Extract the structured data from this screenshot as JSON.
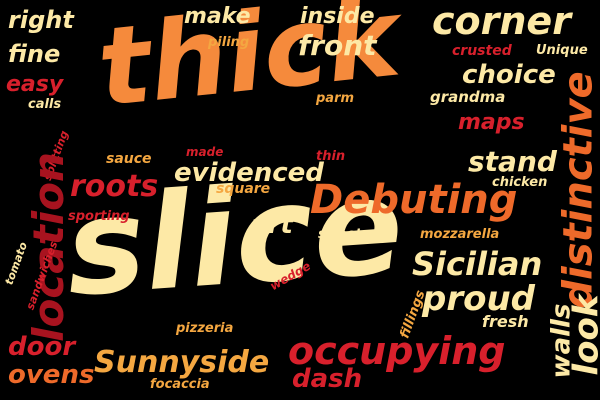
{
  "words": [
    {
      "text": "thick",
      "color": "cream"
    },
    {
      "text": "slice",
      "color": "cream"
    },
    {
      "text": "right",
      "color": "cream"
    },
    {
      "text": "make",
      "color": "cream"
    },
    {
      "text": "inside",
      "color": "cream"
    },
    {
      "text": "corner",
      "color": "cream"
    },
    {
      "text": "front",
      "color": "cream"
    },
    {
      "text": "fine",
      "color": "cream"
    },
    {
      "text": "piling",
      "color": "amber"
    },
    {
      "text": "crusted",
      "color": "red"
    },
    {
      "text": "Unique",
      "color": "cream"
    },
    {
      "text": "easy",
      "color": "red"
    },
    {
      "text": "choice",
      "color": "cream"
    },
    {
      "text": "calls",
      "color": "cream"
    },
    {
      "text": "parm",
      "color": "amber"
    },
    {
      "text": "grandma",
      "color": "cream"
    },
    {
      "text": "distinctive",
      "color": "oranger"
    },
    {
      "text": "maps",
      "color": "red"
    },
    {
      "text": "splitting",
      "color": "red"
    },
    {
      "text": "sauce",
      "color": "amber"
    },
    {
      "text": "made",
      "color": "red"
    },
    {
      "text": "thin",
      "color": "red"
    },
    {
      "text": "stand",
      "color": "cream"
    },
    {
      "text": "chicken",
      "color": "cream"
    },
    {
      "text": "evidenced",
      "color": "cream"
    },
    {
      "text": "location",
      "color": "dred"
    },
    {
      "text": "square",
      "color": "amber"
    },
    {
      "text": "roots",
      "color": "red"
    },
    {
      "text": "Debuting",
      "color": "oranger"
    },
    {
      "text": "sporting",
      "color": "red"
    },
    {
      "text": "art",
      "color": "cream"
    },
    {
      "text": "tomato",
      "color": "cream"
    },
    {
      "text": "sweet",
      "color": "cream"
    },
    {
      "text": "mozzarella",
      "color": "amber"
    },
    {
      "text": "sandwiches",
      "color": "red"
    },
    {
      "text": "Sicilian",
      "color": "cream"
    },
    {
      "text": "wedge",
      "color": "red"
    },
    {
      "text": "proud",
      "color": "cream"
    },
    {
      "text": "fillings",
      "color": "amber"
    },
    {
      "text": "walls",
      "color": "cream"
    },
    {
      "text": "fresh",
      "color": "cream"
    },
    {
      "text": "look",
      "color": "cream"
    },
    {
      "text": "pizzeria",
      "color": "amber"
    },
    {
      "text": "door",
      "color": "red"
    },
    {
      "text": "Sunnyside",
      "color": "amber"
    },
    {
      "text": "occupying",
      "color": "red"
    },
    {
      "text": "ovens",
      "color": "oranger"
    },
    {
      "text": "focaccia",
      "color": "amber"
    },
    {
      "text": "dash",
      "color": "red"
    }
  ],
  "colors": {
    "cream": "#fde9a6",
    "orange": "#f58a3c",
    "amber": "#f4a741",
    "red": "#d8202c",
    "dred": "#a8131f",
    "oranger": "#ee6a2a"
  }
}
